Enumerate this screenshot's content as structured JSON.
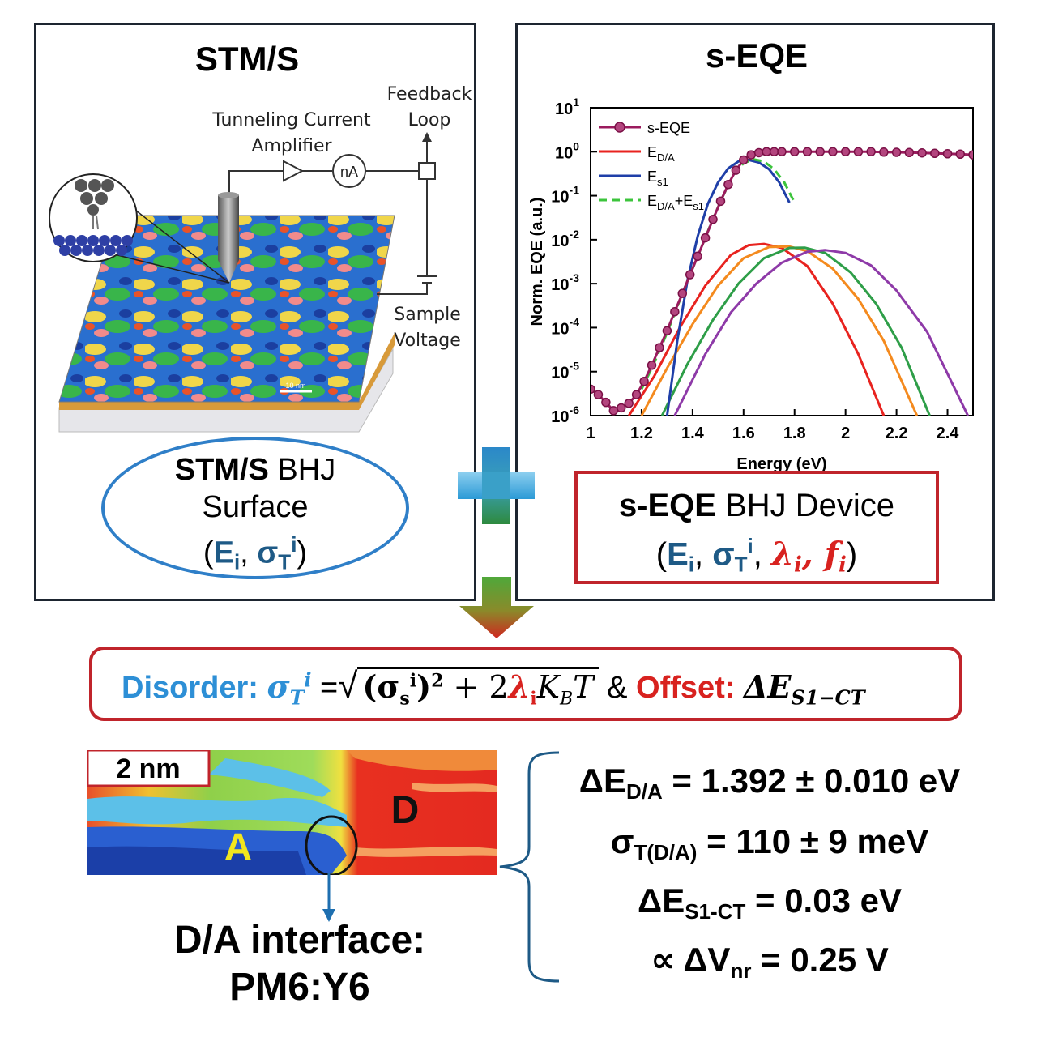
{
  "left_panel": {
    "title": "STM/S",
    "labels": {
      "feedback_1": "Feedback",
      "feedback_2": "Loop",
      "amp_1": "Tunneling Current",
      "amp_2": "Amplifier",
      "meter": "nA",
      "sample_1": "Sample",
      "sample_2": "Voltage",
      "scalebar": "10 nm"
    },
    "ellipse": {
      "line1_bold": "STM/S",
      "line1_rest": " BHJ",
      "line2": "Surface",
      "open": "(",
      "E": "E",
      "E_sub": "i",
      "comma": ", ",
      "sigma": "σ",
      "sigma_sub": "T",
      "sigma_sup": "i",
      "close": ")"
    }
  },
  "right_panel": {
    "title": "s-EQE",
    "box": {
      "line1_bold": "s-EQE",
      "line1_rest": " BHJ Device",
      "open": "(",
      "E": "E",
      "E_sub": "i",
      "comma1": ", ",
      "sigma": "σ",
      "sigma_sub": "T",
      "sigma_sup": "i",
      "comma2": ", ",
      "lambda": "λ",
      "lambda_sub": "i",
      "comma3": ", ",
      "f": "f",
      "f_sub": "i",
      "close": ")"
    }
  },
  "chart_data": {
    "type": "line",
    "xlabel": "Energy (eV)",
    "ylabel": "Norm. EQE (a.u.)",
    "xlim": [
      1.0,
      2.5
    ],
    "ylim_log10": [
      -6,
      1
    ],
    "y_scale": "log",
    "x_ticks": [
      "1",
      "1.2",
      "1.4",
      "1.6",
      "1.8",
      "2",
      "2.2",
      "2.4"
    ],
    "y_ticks": [
      {
        "base": "10",
        "exp": "1"
      },
      {
        "base": "10",
        "exp": "0"
      },
      {
        "base": "10",
        "exp": "-1"
      },
      {
        "base": "10",
        "exp": "-2"
      },
      {
        "base": "10",
        "exp": "-3"
      },
      {
        "base": "10",
        "exp": "-4"
      },
      {
        "base": "10",
        "exp": "-5"
      },
      {
        "base": "10",
        "exp": "-6"
      }
    ],
    "legend": [
      {
        "label": "s-EQE",
        "sub": "",
        "color": "#9b1b5e",
        "style": "marker-line"
      },
      {
        "label": "E",
        "sub": "D/A",
        "color": "#e8231f",
        "style": "solid"
      },
      {
        "label": "E",
        "sub": "s1",
        "color": "#1f3fa8",
        "style": "solid"
      },
      {
        "label": "E",
        "sub": "D/A",
        "suffix": "+E",
        "sub2": "s1",
        "color": "#3cc43c",
        "style": "dashed"
      }
    ],
    "legend_position": "top-left",
    "series": [
      {
        "name": "s-EQE",
        "color": "#9b1b5e",
        "x": [
          1.0,
          1.03,
          1.06,
          1.09,
          1.12,
          1.15,
          1.18,
          1.21,
          1.24,
          1.27,
          1.3,
          1.33,
          1.36,
          1.39,
          1.42,
          1.45,
          1.48,
          1.51,
          1.54,
          1.57,
          1.6,
          1.63,
          1.66,
          1.69,
          1.72,
          1.75,
          1.8,
          1.85,
          1.9,
          1.95,
          2.0,
          2.05,
          2.1,
          2.15,
          2.2,
          2.25,
          2.3,
          2.35,
          2.4,
          2.45,
          2.5
        ],
        "y": [
          4e-06,
          3e-06,
          2e-06,
          1.3e-06,
          1.5e-06,
          1.9e-06,
          3e-06,
          6e-06,
          1.4e-05,
          3.5e-05,
          8.5e-05,
          0.00023,
          0.0006,
          0.0016,
          0.0042,
          0.011,
          0.029,
          0.075,
          0.18,
          0.38,
          0.65,
          0.85,
          0.95,
          1.0,
          1.0,
          1.0,
          1.0,
          1.0,
          1.0,
          1.0,
          1.0,
          1.0,
          1.0,
          0.98,
          0.97,
          0.96,
          0.94,
          0.92,
          0.9,
          0.88,
          0.85
        ]
      },
      {
        "name": "E_s1",
        "color": "#1f3fa8",
        "x": [
          1.3,
          1.34,
          1.38,
          1.42,
          1.46,
          1.5,
          1.54,
          1.58,
          1.62,
          1.66,
          1.7,
          1.74,
          1.78
        ],
        "y": [
          1e-06,
          5e-05,
          0.0012,
          0.012,
          0.065,
          0.2,
          0.42,
          0.6,
          0.65,
          0.57,
          0.4,
          0.2,
          0.07
        ]
      },
      {
        "name": "E_D/A+E_s1",
        "color": "#3cc43c",
        "x": [
          1.2,
          1.24,
          1.28,
          1.32,
          1.36,
          1.4,
          1.44,
          1.48,
          1.52,
          1.56,
          1.6,
          1.64,
          1.68,
          1.72,
          1.76,
          1.8
        ],
        "y": [
          4e-06,
          1.2e-05,
          4e-05,
          0.00015,
          0.0006,
          0.0022,
          0.008,
          0.03,
          0.1,
          0.3,
          0.55,
          0.67,
          0.6,
          0.4,
          0.2,
          0.07
        ]
      },
      {
        "name": "E_D/A",
        "color": "#e8231f",
        "x": [
          1.15,
          1.25,
          1.35,
          1.45,
          1.55,
          1.62,
          1.68,
          1.75,
          1.85,
          1.95,
          2.05,
          2.15
        ],
        "y": [
          1e-06,
          8e-06,
          0.0001,
          0.0009,
          0.0045,
          0.0075,
          0.008,
          0.0065,
          0.0025,
          0.00035,
          2.5e-05,
          1e-06
        ]
      },
      {
        "name": "orange",
        "color": "#f48a1e",
        "x": [
          1.2,
          1.3,
          1.4,
          1.5,
          1.6,
          1.7,
          1.78,
          1.85,
          1.95,
          2.05,
          2.15,
          2.28
        ],
        "y": [
          1e-06,
          1.2e-05,
          0.00012,
          0.0009,
          0.0038,
          0.0068,
          0.007,
          0.0055,
          0.0022,
          0.00045,
          5e-05,
          1e-06
        ]
      },
      {
        "name": "green",
        "color": "#2e9e48",
        "x": [
          1.28,
          1.38,
          1.48,
          1.58,
          1.68,
          1.78,
          1.84,
          1.92,
          2.02,
          2.12,
          2.22,
          2.33
        ],
        "y": [
          1e-06,
          1.5e-05,
          0.00015,
          0.001,
          0.0038,
          0.0065,
          0.0066,
          0.005,
          0.0018,
          0.00035,
          3.5e-05,
          1e-06
        ]
      },
      {
        "name": "purple",
        "color": "#8e3aa8",
        "x": [
          1.33,
          1.45,
          1.55,
          1.65,
          1.75,
          1.85,
          1.92,
          2.0,
          2.1,
          2.2,
          2.32,
          2.48
        ],
        "y": [
          1e-06,
          2.5e-05,
          0.00022,
          0.001,
          0.003,
          0.0053,
          0.0058,
          0.005,
          0.0026,
          0.0007,
          8e-05,
          1e-06
        ]
      }
    ]
  },
  "equation": {
    "disorder_label": "Disorder:",
    "sigma": "σ",
    "T": "T",
    "i": "i",
    "eq": " =",
    "inner_open": "(σ",
    "s": "s",
    "inner_close": ")",
    "squared": "2",
    "plus": " + ",
    "two": "2",
    "lambda": "λ",
    "K": "K",
    "B": "B",
    "Tvar": "T",
    "amp": " & ",
    "offset_label": "Offset:",
    "delta_E": "ΔE",
    "offset_sub": "S1−CT"
  },
  "map": {
    "scalebar": "2 nm",
    "label_A": "A",
    "label_D": "D",
    "interface_1": "D/A interface:",
    "interface_2": "PM6:Y6"
  },
  "results": [
    {
      "pre": "ΔE",
      "sub": "D/A",
      "post": " = 1.392 ± 0.010 eV"
    },
    {
      "pre": "σ",
      "sub": "T(D/A)",
      "post": " = 110 ± 9 meV"
    },
    {
      "pre": "ΔE",
      "sub": "S1-CT",
      "post": " = 0.03 eV"
    },
    {
      "pre": "∝ ΔV",
      "sub": "nr",
      "post": " = 0.25 V"
    }
  ]
}
